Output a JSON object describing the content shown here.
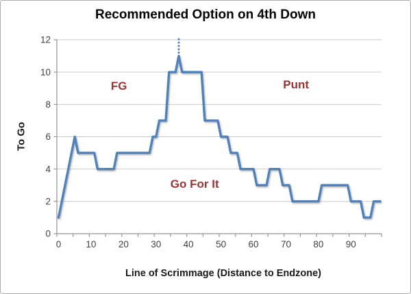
{
  "chart_data": {
    "type": "line",
    "title": "Recommended Option on 4th Down",
    "xlabel": "Line of Scrimmage (Distance to Endzone)",
    "ylabel": "To Go",
    "xlim": [
      0,
      99
    ],
    "ylim": [
      0,
      12
    ],
    "x_start": 0,
    "x_step": 1,
    "y": [
      1,
      2,
      3,
      4,
      5,
      6,
      5,
      5,
      5,
      5,
      5,
      5,
      4,
      4,
      4,
      4,
      4,
      4,
      5,
      5,
      5,
      5,
      5,
      5,
      5,
      5,
      5,
      5,
      5,
      6,
      6,
      7,
      7,
      7,
      10,
      10,
      10,
      11,
      10,
      10,
      10,
      10,
      10,
      10,
      10,
      7,
      7,
      7,
      7,
      7,
      6,
      6,
      6,
      5,
      5,
      5,
      4,
      4,
      4,
      4,
      4,
      3,
      3,
      3,
      3,
      4,
      4,
      4,
      4,
      3,
      3,
      3,
      2,
      2,
      2,
      2,
      2,
      2,
      2,
      2,
      2,
      3,
      3,
      3,
      3,
      3,
      3,
      3,
      3,
      3,
      2,
      2,
      2,
      2,
      1,
      1,
      1,
      2,
      2,
      2
    ],
    "y_ticks": [
      0,
      2,
      4,
      6,
      8,
      10,
      12
    ],
    "x_tick_values": [
      0,
      10,
      20,
      30,
      40,
      50,
      60,
      70,
      80,
      90
    ],
    "x_minor_tick_step": 5,
    "grid": "horizontal",
    "legend": "none",
    "dotted_callout": {
      "x": 37,
      "y_from": 11.2,
      "y_to": 12.05
    },
    "annotations": [
      {
        "text": "FG",
        "x": 18.6,
        "y": 9.1
      },
      {
        "text": "Punt",
        "x": 73.1,
        "y": 9.2
      },
      {
        "text": "Go For It",
        "x": 41.9,
        "y": 3.05
      }
    ],
    "colors": {
      "line": "#4F81BD",
      "annotation": "#943634",
      "grid": "#C9C9C9",
      "axis": "#919191",
      "tick_label": "#3F3F3F",
      "title": "#000000",
      "axis_title": "#1A1A1A",
      "border": "#ACACAC",
      "background": "#FFFFFF"
    }
  }
}
